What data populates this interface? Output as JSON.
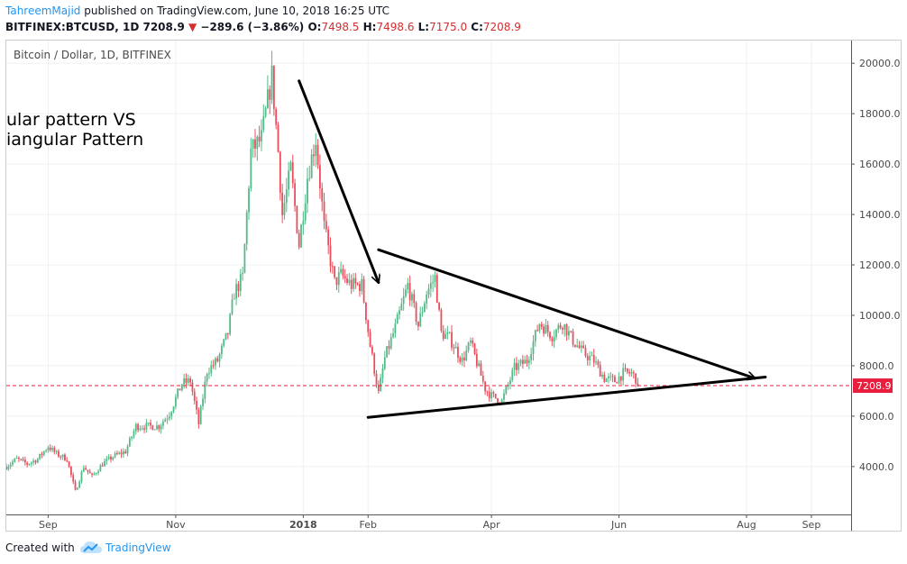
{
  "header": {
    "author": "TahreemMajid",
    "published_text": "published on TradingView.com, June 10, 2018 16:25 UTC",
    "symbol_label": "BITFINEX:BTCUSD, 1D",
    "last_price": "7208.9",
    "change_text": "−289.6 (−3.86%)",
    "open_label": "O:",
    "open_value": "7498.5",
    "high_label": "H:",
    "high_value": "7498.6",
    "low_label": "L:",
    "low_value": "7175.0",
    "close_label": "C:",
    "close_value": "7208.9"
  },
  "footer": {
    "created_with": "Created with",
    "brand": "TradingView"
  },
  "chart_data": {
    "type": "candlestick",
    "title": "Bitcoin / Dollar, 1D, BITFINEX",
    "annotation_lines": [
      "ular pattern  VS",
      "iangular Pattern"
    ],
    "y_ticks": [
      4000,
      6000,
      8000,
      10000,
      12000,
      14000,
      16000,
      18000,
      20000
    ],
    "y_tick_labels": [
      "4000.0",
      "6000.0",
      "8000.0",
      "10000.0",
      "12000.0",
      "14000.0",
      "16000.0",
      "18000.0",
      "20000.0"
    ],
    "ylim": [
      2100,
      20900
    ],
    "x_range": [
      "2017-08-12",
      "2018-09-20"
    ],
    "x_ticks": [
      {
        "date": "2017-09-01",
        "label": "Sep"
      },
      {
        "date": "2017-11-01",
        "label": "Nov"
      },
      {
        "date": "2018-01-01",
        "label": "2018"
      },
      {
        "date": "2018-02-01",
        "label": "Feb"
      },
      {
        "date": "2018-04-01",
        "label": "Apr"
      },
      {
        "date": "2018-06-01",
        "label": "Jun"
      },
      {
        "date": "2018-08-01",
        "label": "Aug"
      },
      {
        "date": "2018-09-01",
        "label": "Sep"
      }
    ],
    "grid": true,
    "up_color": "#53b987",
    "down_color": "#eb4d5c",
    "price_line_color": "#e91e3f",
    "last_price": 7208.9,
    "last_price_label": "7208.9",
    "series_close": [
      [
        "2017-08-12",
        4000
      ],
      [
        "2017-08-17",
        4300
      ],
      [
        "2017-08-22",
        4100
      ],
      [
        "2017-08-27",
        4300
      ],
      [
        "2017-09-01",
        4800
      ],
      [
        "2017-09-05",
        4500
      ],
      [
        "2017-09-10",
        4300
      ],
      [
        "2017-09-14",
        3000
      ],
      [
        "2017-09-18",
        4000
      ],
      [
        "2017-09-22",
        3600
      ],
      [
        "2017-09-27",
        4100
      ],
      [
        "2017-10-02",
        4400
      ],
      [
        "2017-10-08",
        4600
      ],
      [
        "2017-10-13",
        5600
      ],
      [
        "2017-10-18",
        5600
      ],
      [
        "2017-10-24",
        5600
      ],
      [
        "2017-10-29",
        6100
      ],
      [
        "2017-11-04",
        7300
      ],
      [
        "2017-11-08",
        7400
      ],
      [
        "2017-11-12",
        5700
      ],
      [
        "2017-11-16",
        7800
      ],
      [
        "2017-11-21",
        8200
      ],
      [
        "2017-11-26",
        9300
      ],
      [
        "2017-11-29",
        10900
      ],
      [
        "2017-12-03",
        11500
      ],
      [
        "2017-12-07",
        16500
      ],
      [
        "2017-12-12",
        17000
      ],
      [
        "2017-12-17",
        19500
      ],
      [
        "2017-12-20",
        16500
      ],
      [
        "2017-12-22",
        14000
      ],
      [
        "2017-12-26",
        15800
      ],
      [
        "2017-12-30",
        12800
      ],
      [
        "2018-01-03",
        15500
      ],
      [
        "2018-01-07",
        17000
      ],
      [
        "2018-01-11",
        13500
      ],
      [
        "2018-01-16",
        11300
      ],
      [
        "2018-01-19",
        11600
      ],
      [
        "2018-01-24",
        11200
      ],
      [
        "2018-01-29",
        11200
      ],
      [
        "2018-02-02",
        8800
      ],
      [
        "2018-02-06",
        6900
      ],
      [
        "2018-02-09",
        8300
      ],
      [
        "2018-02-14",
        9500
      ],
      [
        "2018-02-20",
        11200
      ],
      [
        "2018-02-25",
        9600
      ],
      [
        "2018-03-01",
        10900
      ],
      [
        "2018-03-05",
        11500
      ],
      [
        "2018-03-08",
        9300
      ],
      [
        "2018-03-12",
        9100
      ],
      [
        "2018-03-18",
        8200
      ],
      [
        "2018-03-22",
        8900
      ],
      [
        "2018-03-29",
        7100
      ],
      [
        "2018-04-01",
        6800
      ],
      [
        "2018-04-06",
        6600
      ],
      [
        "2018-04-12",
        7900
      ],
      [
        "2018-04-18",
        8200
      ],
      [
        "2018-04-24",
        9700
      ],
      [
        "2018-04-30",
        9200
      ],
      [
        "2018-05-05",
        9700
      ],
      [
        "2018-05-10",
        9000
      ],
      [
        "2018-05-15",
        8500
      ],
      [
        "2018-05-20",
        8200
      ],
      [
        "2018-05-25",
        7500
      ],
      [
        "2018-05-30",
        7400
      ],
      [
        "2018-06-03",
        7700
      ],
      [
        "2018-06-07",
        7700
      ],
      [
        "2018-06-09",
        7500
      ],
      [
        "2018-06-10",
        7209
      ]
    ],
    "drawn_lines": [
      {
        "name": "downtrend-arrow",
        "from": [
          "2017-12-30",
          19300
        ],
        "to": [
          "2018-02-06",
          11300
        ],
        "arrow": true
      },
      {
        "name": "triangle-upper-line",
        "from": [
          "2018-02-06",
          12600
        ],
        "to": [
          "2018-08-05",
          7500
        ],
        "arrow": true
      },
      {
        "name": "triangle-lower-line",
        "from": [
          "2018-02-01",
          5950
        ],
        "to": [
          "2018-08-10",
          7550
        ],
        "arrow": false
      }
    ]
  }
}
